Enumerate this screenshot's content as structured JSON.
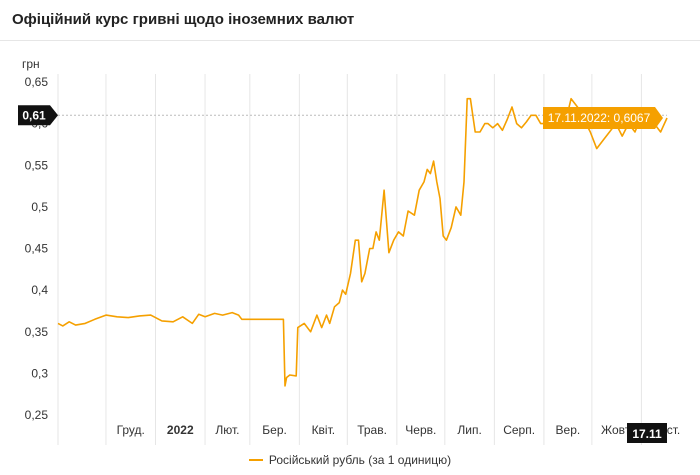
{
  "header": {
    "title": "Офіційний курс гривні щодо іноземних валют"
  },
  "colors": {
    "series": "#f5a000",
    "tooltip_bg": "#f5a000",
    "marker_bg": "#111111",
    "grid": "#e6e6e6",
    "crosshair": "#bbbbbb"
  },
  "chart_data": {
    "type": "line",
    "ylabel": "грн",
    "ylim": [
      0.25,
      0.65
    ],
    "y_ticks": [
      "0,65",
      "0,6",
      "0,55",
      "0,5",
      "0,45",
      "0,4",
      "0,35",
      "0,3",
      "0,25"
    ],
    "x_ticks": [
      "Груд.",
      "2022",
      "Лют.",
      "Бер.",
      "Квіт.",
      "Трав.",
      "Черв.",
      "Лип.",
      "Серп.",
      "Вер.",
      "Жовт.",
      "Лист."
    ],
    "x_tick_dates": [
      "2021-12-01",
      "2022-01-01",
      "2022-02-01",
      "2022-03-01",
      "2022-04-01",
      "2022-05-01",
      "2022-06-01",
      "2022-07-01",
      "2022-08-01",
      "2022-09-01",
      "2022-10-01",
      "2022-11-01"
    ],
    "x_range": [
      "2021-11-01",
      "2022-11-17"
    ],
    "grid": {
      "vertical": true,
      "horizontal": false
    },
    "legend_position": "bottom-center",
    "series": [
      {
        "name": "Російський рубль (за 1 одиницю)",
        "x": [
          "2021-11-01",
          "2021-11-04",
          "2021-11-08",
          "2021-11-12",
          "2021-11-18",
          "2021-11-24",
          "2021-12-01",
          "2021-12-08",
          "2021-12-15",
          "2021-12-22",
          "2021-12-29",
          "2022-01-05",
          "2022-01-12",
          "2022-01-18",
          "2022-01-24",
          "2022-01-28",
          "2022-02-01",
          "2022-02-07",
          "2022-02-12",
          "2022-02-18",
          "2022-02-22",
          "2022-02-24",
          "2022-03-01",
          "2022-03-08",
          "2022-03-15",
          "2022-03-22",
          "2022-03-23",
          "2022-03-24",
          "2022-03-26",
          "2022-03-30",
          "2022-03-31",
          "2022-04-04",
          "2022-04-08",
          "2022-04-12",
          "2022-04-15",
          "2022-04-18",
          "2022-04-20",
          "2022-04-23",
          "2022-04-26",
          "2022-04-28",
          "2022-04-30",
          "2022-05-03",
          "2022-05-06",
          "2022-05-08",
          "2022-05-10",
          "2022-05-12",
          "2022-05-15",
          "2022-05-17",
          "2022-05-19",
          "2022-05-21",
          "2022-05-24",
          "2022-05-27",
          "2022-05-30",
          "2022-06-02",
          "2022-06-05",
          "2022-06-08",
          "2022-06-12",
          "2022-06-15",
          "2022-06-18",
          "2022-06-20",
          "2022-06-22",
          "2022-06-24",
          "2022-06-26",
          "2022-06-28",
          "2022-06-30",
          "2022-07-02",
          "2022-07-05",
          "2022-07-08",
          "2022-07-11",
          "2022-07-13",
          "2022-07-15",
          "2022-07-17",
          "2022-07-20",
          "2022-07-23",
          "2022-07-26",
          "2022-07-28",
          "2022-07-31",
          "2022-08-03",
          "2022-08-06",
          "2022-08-09",
          "2022-08-12",
          "2022-08-15",
          "2022-08-18",
          "2022-08-21",
          "2022-08-24",
          "2022-08-27",
          "2022-08-30",
          "2022-09-03",
          "2022-09-06",
          "2022-09-09",
          "2022-09-12",
          "2022-09-15",
          "2022-09-18",
          "2022-09-22",
          "2022-09-26",
          "2022-09-30",
          "2022-10-04",
          "2022-10-08",
          "2022-10-12",
          "2022-10-16",
          "2022-10-20",
          "2022-10-24",
          "2022-10-28",
          "2022-11-01",
          "2022-11-05",
          "2022-11-09",
          "2022-11-13",
          "2022-11-17"
        ],
        "values": [
          0.36,
          0.357,
          0.362,
          0.358,
          0.36,
          0.365,
          0.37,
          0.368,
          0.367,
          0.369,
          0.37,
          0.363,
          0.362,
          0.368,
          0.36,
          0.371,
          0.368,
          0.372,
          0.37,
          0.373,
          0.37,
          0.365,
          0.365,
          0.365,
          0.365,
          0.365,
          0.285,
          0.295,
          0.298,
          0.297,
          0.355,
          0.36,
          0.35,
          0.37,
          0.355,
          0.37,
          0.36,
          0.38,
          0.385,
          0.4,
          0.395,
          0.42,
          0.46,
          0.46,
          0.41,
          0.42,
          0.45,
          0.45,
          0.47,
          0.46,
          0.52,
          0.445,
          0.46,
          0.47,
          0.465,
          0.495,
          0.49,
          0.52,
          0.53,
          0.545,
          0.54,
          0.555,
          0.53,
          0.51,
          0.465,
          0.46,
          0.475,
          0.5,
          0.49,
          0.53,
          0.63,
          0.63,
          0.59,
          0.59,
          0.6,
          0.6,
          0.595,
          0.6,
          0.592,
          0.605,
          0.62,
          0.6,
          0.595,
          0.602,
          0.61,
          0.61,
          0.6,
          0.6,
          0.615,
          0.61,
          0.598,
          0.606,
          0.63,
          0.62,
          0.605,
          0.59,
          0.57,
          0.58,
          0.59,
          0.6,
          0.585,
          0.6,
          0.59,
          0.61,
          0.602,
          0.6,
          0.59,
          0.6067
        ]
      }
    ],
    "tooltip": {
      "text": "17.11.2022: 0,6067",
      "date": "2022-11-17",
      "value": 0.6067
    },
    "crosshair": {
      "y_label": "0,61",
      "x_label": "17.11",
      "value": 0.61,
      "date": "2022-11-17"
    }
  }
}
